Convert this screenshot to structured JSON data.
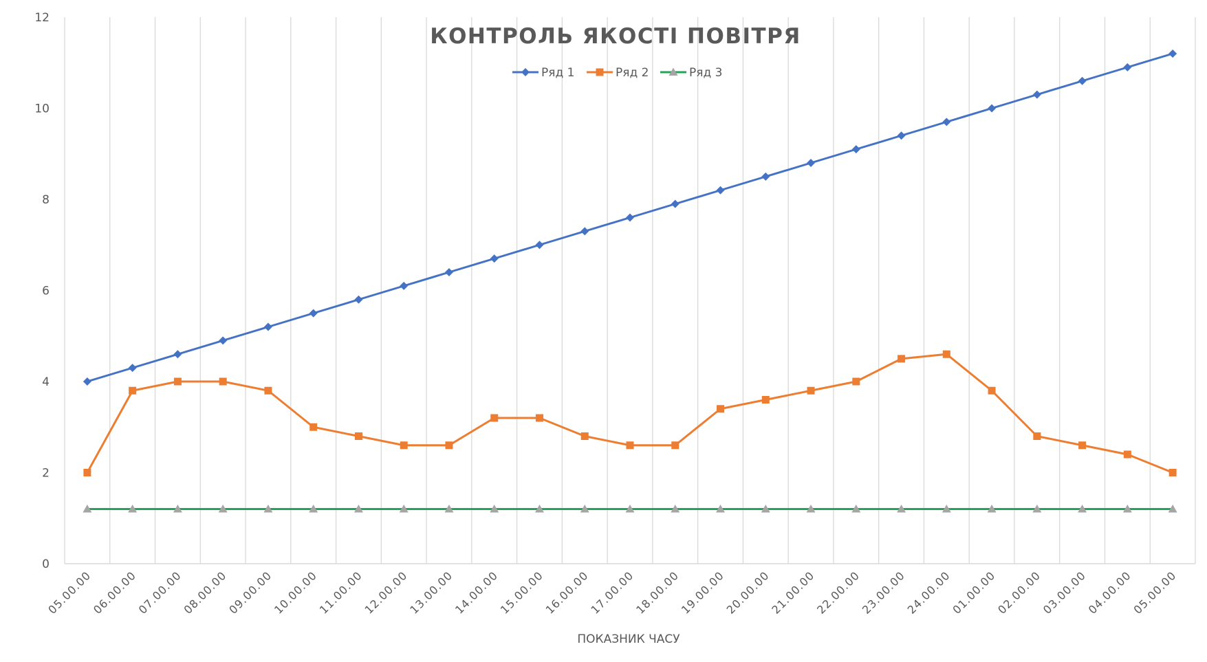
{
  "chart_data": {
    "type": "line",
    "title": "КОНТРОЛЬ ЯКОСТІ ПОВІТРЯ",
    "xlabel": "ПОКАЗНИК ЧАСУ",
    "ylabel": "",
    "ylim": [
      0,
      12
    ],
    "yticks": [
      0,
      2,
      4,
      6,
      8,
      10,
      12
    ],
    "grid": {
      "vertical": true,
      "horizontal": false
    },
    "legend_position": "top",
    "categories": [
      "05.00.00",
      "06.00.00",
      "07.00.00",
      "08.00.00",
      "09.00.00",
      "10.00.00",
      "11.00.00",
      "12.00.00",
      "13.00.00",
      "14.00.00",
      "15.00.00",
      "16.00.00",
      "17.00.00",
      "18.00.00",
      "19.00.00",
      "20.00.00",
      "21.00.00",
      "22.00.00",
      "23.00.00",
      "24.00.00",
      "01.00.00",
      "02.00.00",
      "03.00.00",
      "04.00.00",
      "05.00.00"
    ],
    "series": [
      {
        "name": "Ряд 1",
        "color": "#4472C4",
        "marker": "diamond",
        "values": [
          4.0,
          4.3,
          4.6,
          4.9,
          5.2,
          5.5,
          5.8,
          6.1,
          6.4,
          6.7,
          7.0,
          7.3,
          7.6,
          7.9,
          8.2,
          8.5,
          8.8,
          9.1,
          9.4,
          9.7,
          10.0,
          10.3,
          10.6,
          10.9,
          11.2
        ]
      },
      {
        "name": "Ряд 2",
        "color": "#ED7D31",
        "marker": "square",
        "values": [
          2.0,
          3.8,
          4.0,
          4.0,
          3.8,
          3.0,
          2.8,
          2.6,
          2.6,
          3.2,
          3.2,
          2.8,
          2.6,
          2.6,
          3.4,
          3.6,
          3.8,
          4.0,
          4.5,
          4.6,
          3.8,
          2.8,
          2.6,
          2.4,
          2.0
        ]
      },
      {
        "name": "Ряд 3",
        "color": "#22A556",
        "marker_color": "#A5A5A5",
        "marker": "triangle",
        "values": [
          1.2,
          1.2,
          1.2,
          1.2,
          1.2,
          1.2,
          1.2,
          1.2,
          1.2,
          1.2,
          1.2,
          1.2,
          1.2,
          1.2,
          1.2,
          1.2,
          1.2,
          1.2,
          1.2,
          1.2,
          1.2,
          1.2,
          1.2,
          1.2,
          1.2
        ]
      }
    ]
  },
  "colors": {
    "text": "#595959",
    "grid": "#D9D9D9",
    "axis": "#D9D9D9"
  }
}
